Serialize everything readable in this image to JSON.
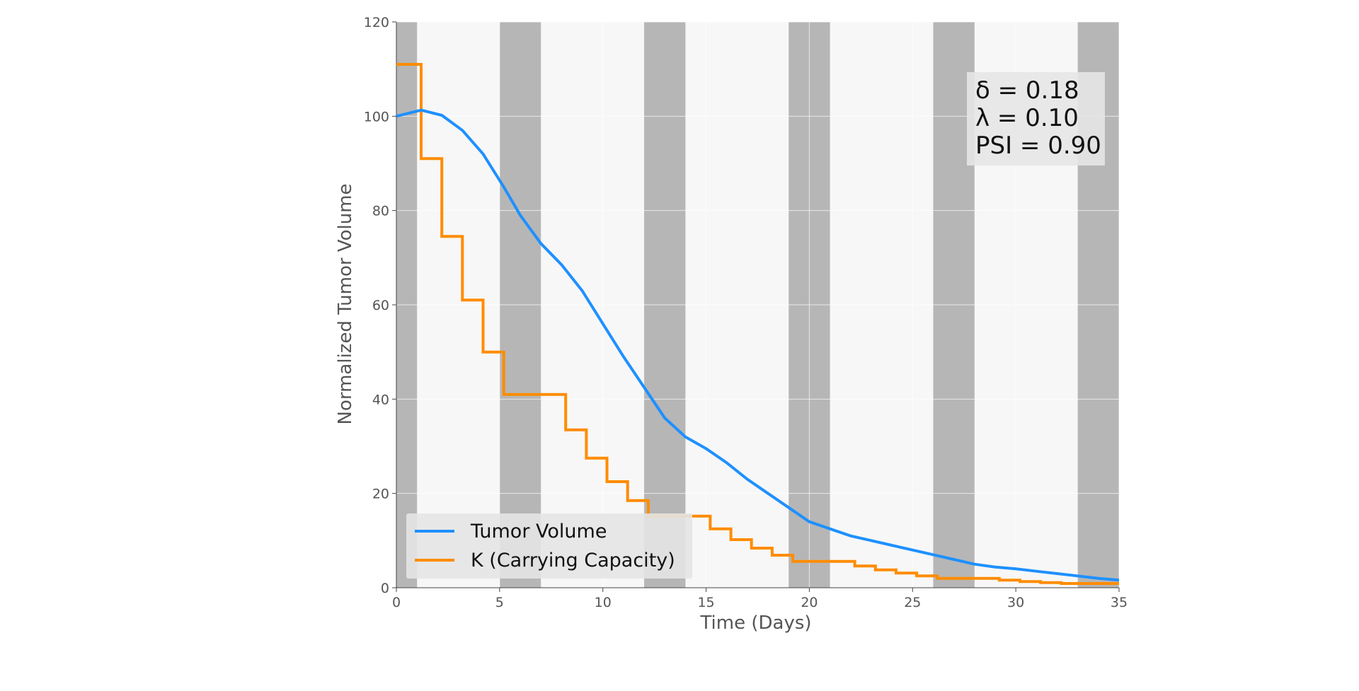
{
  "chart_data": {
    "type": "line",
    "xlabel": "Time (Days)",
    "ylabel": "Normalized Tumor Volume",
    "xlim": [
      0,
      35
    ],
    "ylim": [
      0,
      120
    ],
    "xticks": [
      0,
      5,
      10,
      15,
      20,
      25,
      30,
      35
    ],
    "yticks": [
      0,
      20,
      40,
      60,
      80,
      100,
      120
    ],
    "grid": true,
    "legend_position": "lower-left",
    "treatment_periods": [
      [
        0,
        1
      ],
      [
        5,
        7
      ],
      [
        12,
        14
      ],
      [
        19,
        21
      ],
      [
        26,
        28
      ],
      [
        33,
        35
      ]
    ],
    "annotation": {
      "lines": [
        "δ = 0.18",
        "λ = 0.10",
        "PSI = 0.90"
      ]
    },
    "series": [
      {
        "name": "Tumor Volume",
        "color": "#1E90FF",
        "style": "line",
        "x": [
          0,
          1.2,
          2.2,
          3.2,
          4.2,
          5.2,
          6,
          7,
          8,
          9,
          10,
          11,
          12,
          13,
          14,
          15,
          16,
          17,
          18,
          19,
          20,
          21,
          22,
          23,
          24,
          25,
          26,
          27,
          28,
          29,
          30,
          31,
          32,
          33,
          34,
          35
        ],
        "y": [
          100,
          101.3,
          100.2,
          97,
          92,
          85,
          79,
          73,
          68.5,
          63,
          56,
          49,
          42.5,
          36,
          32,
          29.5,
          26.5,
          23,
          20,
          17,
          14,
          12.5,
          11,
          10,
          9,
          8,
          7,
          6,
          5,
          4.4,
          4,
          3.5,
          3,
          2.5,
          2,
          1.6
        ]
      },
      {
        "name": "K (Carrying Capacity)",
        "color": "#FF8C00",
        "style": "step",
        "x": [
          0,
          1.2,
          1.2,
          2.2,
          2.2,
          3.2,
          3.2,
          4.2,
          4.2,
          5.2,
          5.2,
          8.2,
          8.2,
          9.2,
          9.2,
          10.2,
          10.2,
          11.2,
          11.2,
          12.2,
          12.2,
          15.2,
          15.2,
          16.2,
          16.2,
          17.2,
          17.2,
          18.2,
          18.2,
          19.2,
          19.2,
          22.2,
          22.2,
          23.2,
          23.2,
          24.2,
          24.2,
          25.2,
          25.2,
          26.2,
          26.2,
          29.2,
          29.2,
          30.2,
          30.2,
          31.2,
          31.2,
          32.2,
          32.2,
          35
        ],
        "y": [
          111,
          111,
          91,
          91,
          74.5,
          74.5,
          61,
          61,
          50,
          50,
          41,
          41,
          33.5,
          33.5,
          27.5,
          27.5,
          22.5,
          22.5,
          18.5,
          18.5,
          15.2,
          15.2,
          12.5,
          12.5,
          10.2,
          10.2,
          8.4,
          8.4,
          6.9,
          6.9,
          5.6,
          5.6,
          4.6,
          4.6,
          3.8,
          3.8,
          3.1,
          3.1,
          2.5,
          2.5,
          2.0,
          2.0,
          1.6,
          1.6,
          1.3,
          1.3,
          1.1,
          1.1,
          0.9,
          0.9
        ]
      }
    ]
  }
}
